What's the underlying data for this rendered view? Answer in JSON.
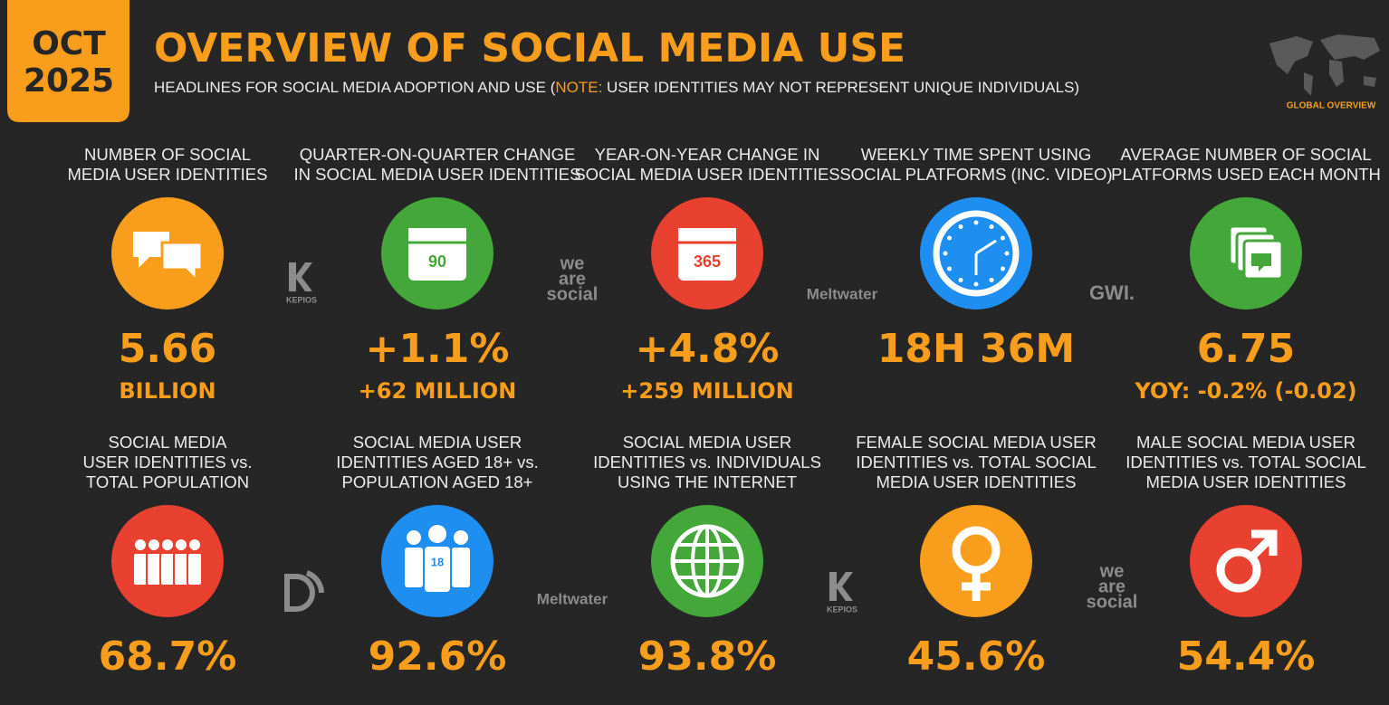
{
  "header": {
    "date": [
      "OCT",
      "2025"
    ],
    "title": "OVERVIEW OF SOCIAL MEDIA USE",
    "subtitle": [
      "HEADLINES FOR SOCIAL MEDIA ADOPTION AND USE (",
      "NOTE:",
      " USER IDENTITIES MAY NOT REPRESENT UNIQUE INDIVIDUALS)"
    ],
    "badge": "GLOBAL OVERVIEW"
  },
  "tiles": [
    {
      "label": [
        "NUMBER OF SOCIAL",
        "MEDIA USER IDENTITIES"
      ],
      "value": "5.66",
      "sub": "BILLION",
      "color": "#f99d1c"
    },
    {
      "label": [
        "QUARTER-ON-QUARTER CHANGE",
        "IN SOCIAL MEDIA USER IDENTITIES"
      ],
      "value": "+1.1%",
      "sub": "+62 MILLION",
      "color": "#43a73a",
      "icon_text": "90"
    },
    {
      "label": [
        "YEAR-ON-YEAR CHANGE IN",
        "SOCIAL MEDIA USER IDENTITIES"
      ],
      "value": "+4.8%",
      "sub": "+259 MILLION",
      "color": "#e9412f",
      "icon_text": "365"
    },
    {
      "label": [
        "WEEKLY TIME SPENT USING",
        "SOCIAL PLATFORMS (INC. VIDEO)"
      ],
      "value": "18H 36M",
      "color": "#1f8ef1"
    },
    {
      "label": [
        "AVERAGE NUMBER OF SOCIAL",
        "PLATFORMS USED EACH MONTH"
      ],
      "value": "6.75",
      "sub": "YOY: -0.2% (-0.02)",
      "color": "#43a73a"
    },
    {
      "label": [
        "SOCIAL MEDIA",
        "USER IDENTITIES vs.",
        "TOTAL POPULATION"
      ],
      "value": "68.7%",
      "color": "#e9412f"
    },
    {
      "label": [
        "SOCIAL MEDIA USER",
        "IDENTITIES AGED 18+ vs.",
        "POPULATION AGED 18+"
      ],
      "value": "92.6%",
      "color": "#1f8ef1",
      "icon_text": "18"
    },
    {
      "label": [
        "SOCIAL MEDIA USER",
        "IDENTITIES vs. INDIVIDUALS",
        "USING THE INTERNET"
      ],
      "value": "93.8%",
      "color": "#43a73a"
    },
    {
      "label": [
        "FEMALE SOCIAL MEDIA USER",
        "IDENTITIES vs. TOTAL SOCIAL",
        "MEDIA USER IDENTITIES"
      ],
      "value": "45.6%",
      "color": "#f99d1c"
    },
    {
      "label": [
        "MALE SOCIAL MEDIA USER",
        "IDENTITIES vs. TOTAL SOCIAL",
        "MEDIA USER IDENTITIES"
      ],
      "value": "54.4%",
      "color": "#e9412f"
    }
  ],
  "logos": [
    [
      "KEPIOS"
    ],
    [
      "we",
      "are",
      "social"
    ],
    [
      "Meltwater"
    ],
    [
      "GWI."
    ],
    [],
    [
      "Meltwater"
    ],
    [
      "KEPIOS"
    ],
    [
      "we",
      "are",
      "social"
    ]
  ]
}
